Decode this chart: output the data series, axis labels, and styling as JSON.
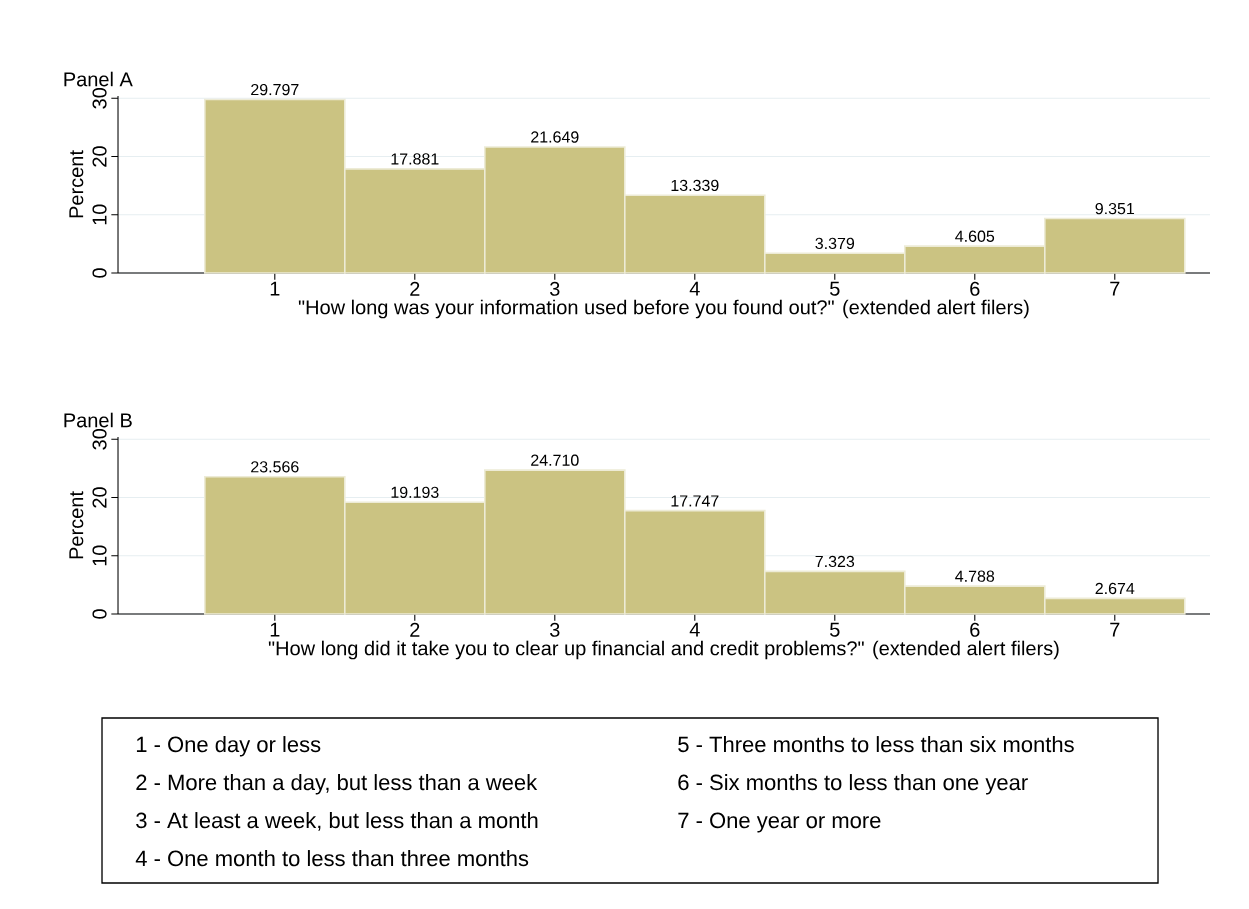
{
  "chart_data": [
    {
      "type": "bar",
      "title": "Panel A",
      "xlabel": "\"How long was your information used before you found out?\" (extended alert filers)",
      "ylabel": "Percent",
      "categories": [
        "1",
        "2",
        "3",
        "4",
        "5",
        "6",
        "7"
      ],
      "values": [
        29.797,
        17.881,
        21.649,
        13.339,
        3.379,
        4.605,
        9.351
      ],
      "value_labels": [
        "29.797",
        "17.881",
        "21.649",
        "13.339",
        "3.379",
        "4.605",
        "9.351"
      ],
      "color": "#cbc382",
      "ylim": [
        0,
        30.4
      ],
      "yticks": [
        0,
        10,
        20,
        30
      ],
      "grid": "y"
    },
    {
      "type": "bar",
      "title": "Panel B",
      "xlabel": "\"How long did it take you to clear up financial and credit problems?\" (extended alert filers)",
      "ylabel": "Percent",
      "categories": [
        "1",
        "2",
        "3",
        "4",
        "5",
        "6",
        "7"
      ],
      "values": [
        23.566,
        19.193,
        24.71,
        17.747,
        7.323,
        4.788,
        2.674
      ],
      "value_labels": [
        "23.566",
        "19.193",
        "24.710",
        "17.747",
        "7.323",
        "4.788",
        "2.674"
      ],
      "color": "#cbc382",
      "ylim": [
        0,
        30.4
      ],
      "yticks": [
        0,
        10,
        20,
        30
      ],
      "grid": "y"
    },
    {
      "type": "other",
      "annotations": [
        "1 - One day or less",
        "2 - More than a day, but less than a week",
        "3 - At least a week, but less than a month",
        "4 - One month to less than three months",
        "5 - Three months to less than six months",
        "6 - Six months to less than one year",
        "7 - One year or more"
      ]
    }
  ]
}
